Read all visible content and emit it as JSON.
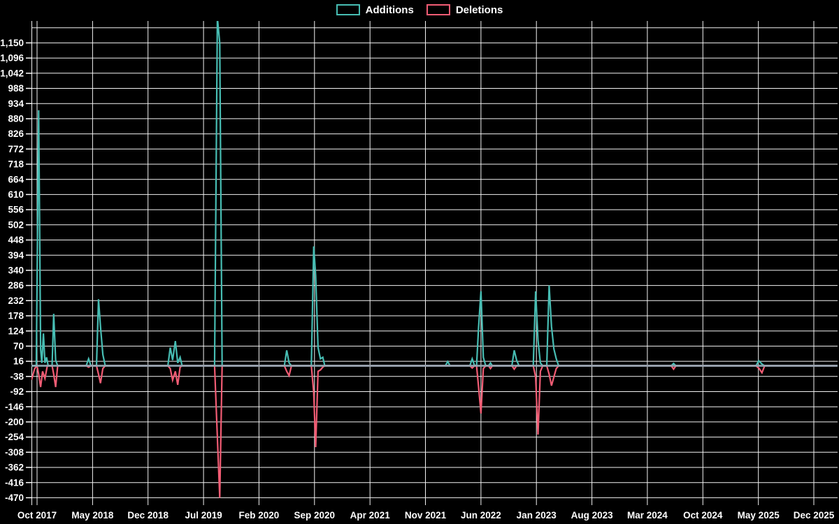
{
  "legend": {
    "items": [
      {
        "id": "additions",
        "label": "Additions",
        "color": "#47BDB3"
      },
      {
        "id": "deletions",
        "label": "Deletions",
        "color": "#F25C74"
      }
    ]
  },
  "chart_data": {
    "type": "line",
    "title": "",
    "xlabel": "",
    "ylabel": "",
    "background_color": "#000000",
    "grid": true,
    "grid_color": "#F2F2F2",
    "axis_text_color": "#FFFFFF",
    "zero_line_color": "#92A8B4",
    "legend_position": "top-center",
    "ylim": [
      -470,
      1204
    ],
    "y_grid_top_value": 1204,
    "y_tick_values": [
      1150,
      1096,
      1042,
      988,
      934,
      880,
      826,
      772,
      718,
      664,
      610,
      556,
      502,
      448,
      394,
      340,
      286,
      232,
      178,
      124,
      70,
      16,
      -38,
      -92,
      -146,
      -200,
      -254,
      -308,
      -362,
      -416,
      -470
    ],
    "y_tick_labels": [
      "1,150",
      "1,096",
      "1,042",
      "988",
      "934",
      "880",
      "826",
      "772",
      "718",
      "664",
      "610",
      "556",
      "502",
      "448",
      "394",
      "340",
      "286",
      "232",
      "178",
      "124",
      "70",
      "16",
      "-38",
      "-92",
      "-146",
      "-200",
      "-254",
      "-308",
      "-362",
      "-416",
      "-470"
    ],
    "x_unit": "months since Oct 2017 (weekly data points)",
    "x_tick_months": [
      0,
      7,
      14,
      21,
      28,
      35,
      42,
      49,
      56,
      63,
      70,
      77,
      84,
      91,
      98
    ],
    "x_tick_labels": [
      "Oct 2017",
      "May 2018",
      "Dec 2018",
      "Jul 2019",
      "Feb 2020",
      "Sep 2020",
      "Apr 2021",
      "Nov 2021",
      "Jun 2022",
      "Jan 2023",
      "Aug 2023",
      "Mar 2024",
      "Oct 2024",
      "May 2025",
      "Dec 2025"
    ],
    "series": [
      {
        "name": "Additions",
        "color": "#47BDB3",
        "points": [
          [
            -0.7,
            0
          ],
          [
            -0.1,
            0
          ],
          [
            0.2,
            910
          ],
          [
            0.45,
            60
          ],
          [
            0.6,
            10
          ],
          [
            0.8,
            115
          ],
          [
            1.0,
            10
          ],
          [
            1.2,
            30
          ],
          [
            1.4,
            0
          ],
          [
            1.9,
            0
          ],
          [
            2.1,
            185
          ],
          [
            2.35,
            20
          ],
          [
            2.6,
            0
          ],
          [
            6.2,
            0
          ],
          [
            6.5,
            25
          ],
          [
            6.8,
            0
          ],
          [
            7.5,
            0
          ],
          [
            7.75,
            237
          ],
          [
            8.0,
            140
          ],
          [
            8.3,
            40
          ],
          [
            8.6,
            0
          ],
          [
            16.5,
            0
          ],
          [
            16.8,
            65
          ],
          [
            17.1,
            20
          ],
          [
            17.45,
            88
          ],
          [
            17.75,
            10
          ],
          [
            18.05,
            30
          ],
          [
            18.3,
            0
          ],
          [
            22.4,
            0
          ],
          [
            22.75,
            1240
          ],
          [
            23.05,
            1150
          ],
          [
            23.35,
            0
          ],
          [
            31.2,
            0
          ],
          [
            31.5,
            55
          ],
          [
            31.8,
            10
          ],
          [
            32.1,
            0
          ],
          [
            34.6,
            0
          ],
          [
            34.9,
            425
          ],
          [
            35.15,
            320
          ],
          [
            35.45,
            65
          ],
          [
            35.75,
            25
          ],
          [
            36.05,
            30
          ],
          [
            36.3,
            0
          ],
          [
            51.5,
            0
          ],
          [
            51.8,
            15
          ],
          [
            52.1,
            0
          ],
          [
            54.6,
            0
          ],
          [
            54.9,
            25
          ],
          [
            55.2,
            0
          ],
          [
            55.45,
            0
          ],
          [
            55.7,
            137
          ],
          [
            56.0,
            265
          ],
          [
            56.3,
            30
          ],
          [
            56.6,
            0
          ],
          [
            56.95,
            0
          ],
          [
            57.2,
            10
          ],
          [
            57.45,
            0
          ],
          [
            59.9,
            0
          ],
          [
            60.2,
            55
          ],
          [
            60.5,
            20
          ],
          [
            60.8,
            0
          ],
          [
            62.6,
            0
          ],
          [
            62.9,
            265
          ],
          [
            63.2,
            90
          ],
          [
            63.5,
            10
          ],
          [
            63.8,
            0
          ],
          [
            64.3,
            0
          ],
          [
            64.6,
            286
          ],
          [
            64.9,
            140
          ],
          [
            65.2,
            60
          ],
          [
            65.5,
            25
          ],
          [
            65.8,
            0
          ],
          [
            80.0,
            0
          ],
          [
            80.3,
            8
          ],
          [
            80.6,
            0
          ],
          [
            90.7,
            0
          ],
          [
            91.05,
            18
          ],
          [
            91.45,
            6
          ],
          [
            91.8,
            0
          ],
          [
            100.9,
            0
          ]
        ]
      },
      {
        "name": "Deletions",
        "color": "#F25C74",
        "points": [
          [
            -0.7,
            -50
          ],
          [
            -0.3,
            -10
          ],
          [
            0.0,
            0
          ],
          [
            0.2,
            -30
          ],
          [
            0.45,
            -76
          ],
          [
            0.7,
            -20
          ],
          [
            1.0,
            -45
          ],
          [
            1.3,
            0
          ],
          [
            1.9,
            0
          ],
          [
            2.1,
            -30
          ],
          [
            2.35,
            -76
          ],
          [
            2.6,
            0
          ],
          [
            6.2,
            0
          ],
          [
            6.5,
            -5
          ],
          [
            6.8,
            0
          ],
          [
            7.5,
            0
          ],
          [
            7.75,
            -30
          ],
          [
            8.0,
            -62
          ],
          [
            8.3,
            -10
          ],
          [
            8.6,
            0
          ],
          [
            16.5,
            0
          ],
          [
            16.8,
            -10
          ],
          [
            17.1,
            -51
          ],
          [
            17.45,
            -20
          ],
          [
            17.75,
            -68
          ],
          [
            18.05,
            -5
          ],
          [
            18.3,
            0
          ],
          [
            22.4,
            0
          ],
          [
            22.75,
            -255
          ],
          [
            23.05,
            -470
          ],
          [
            23.35,
            0
          ],
          [
            31.2,
            0
          ],
          [
            31.5,
            -20
          ],
          [
            31.8,
            -35
          ],
          [
            32.1,
            0
          ],
          [
            34.6,
            0
          ],
          [
            34.9,
            -96
          ],
          [
            35.15,
            -290
          ],
          [
            35.45,
            -20
          ],
          [
            35.75,
            -15
          ],
          [
            36.05,
            -5
          ],
          [
            36.3,
            0
          ],
          [
            54.6,
            0
          ],
          [
            54.9,
            -8
          ],
          [
            55.2,
            0
          ],
          [
            55.45,
            0
          ],
          [
            55.7,
            -76
          ],
          [
            56.0,
            -170
          ],
          [
            56.3,
            -10
          ],
          [
            56.6,
            0
          ],
          [
            56.95,
            0
          ],
          [
            57.2,
            -10
          ],
          [
            57.45,
            0
          ],
          [
            59.9,
            0
          ],
          [
            60.2,
            -12
          ],
          [
            60.5,
            0
          ],
          [
            62.6,
            0
          ],
          [
            62.9,
            -40
          ],
          [
            63.2,
            -245
          ],
          [
            63.5,
            -20
          ],
          [
            63.8,
            0
          ],
          [
            64.3,
            0
          ],
          [
            64.6,
            -30
          ],
          [
            64.9,
            -71
          ],
          [
            65.2,
            -40
          ],
          [
            65.5,
            -10
          ],
          [
            65.8,
            0
          ],
          [
            80.0,
            0
          ],
          [
            80.3,
            -12
          ],
          [
            80.6,
            0
          ],
          [
            90.7,
            0
          ],
          [
            91.1,
            -10
          ],
          [
            91.45,
            -25
          ],
          [
            91.8,
            0
          ],
          [
            100.9,
            0
          ]
        ]
      }
    ]
  }
}
